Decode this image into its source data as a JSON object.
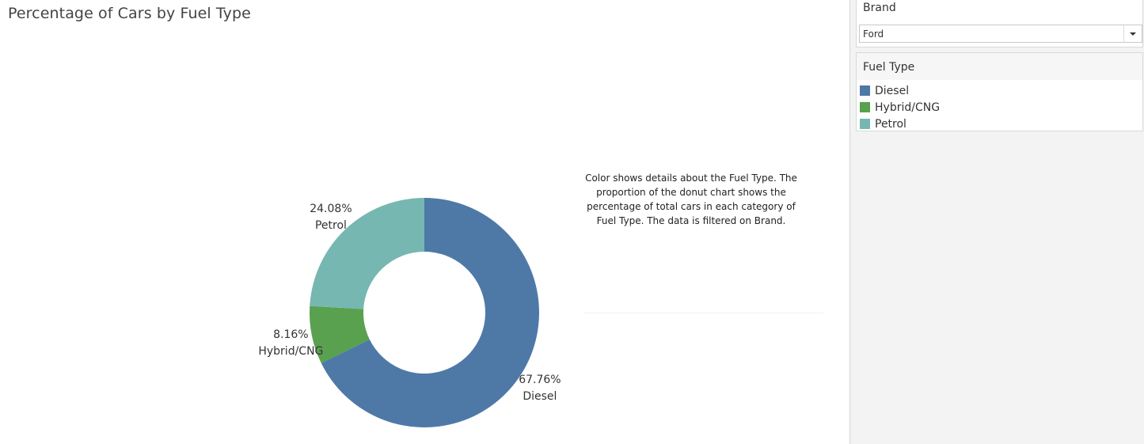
{
  "chart_data": {
    "type": "pie",
    "variant": "donut",
    "title": "Percentage of Cars by Fuel Type",
    "slices": [
      {
        "name": "Diesel",
        "value": 67.76,
        "label": "67.76%",
        "color": "#4e79a7"
      },
      {
        "name": "Hybrid/CNG",
        "value": 8.16,
        "label": "8.16%",
        "color": "#59a14f"
      },
      {
        "name": "Petrol",
        "value": 24.08,
        "label": "24.08%",
        "color": "#76b7b2"
      }
    ],
    "caption": "Color shows details about the Fuel Type.  The proportion of the donut chart shows the percentage of total cars in each category of Fuel Type. The data is filtered on Brand.",
    "legend_placement": "right"
  },
  "filters": {
    "brand": {
      "title": "Brand",
      "selected": "Ford"
    }
  },
  "legend": {
    "title": "Fuel Type",
    "items": [
      {
        "label": "Diesel",
        "color": "#4e79a7"
      },
      {
        "label": "Hybrid/CNG",
        "color": "#59a14f"
      },
      {
        "label": "Petrol",
        "color": "#76b7b2"
      }
    ]
  }
}
